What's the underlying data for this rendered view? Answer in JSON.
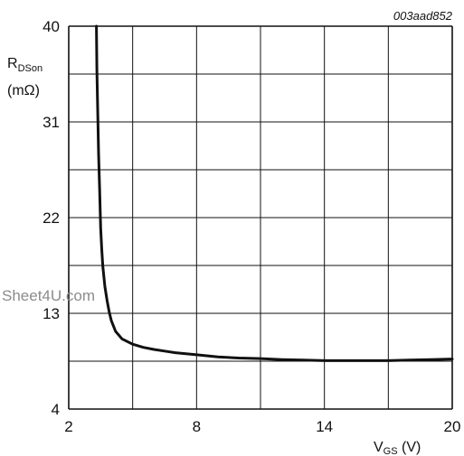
{
  "figure_id": "003aad852",
  "watermark": "Sheet4U.com",
  "chart_data": {
    "type": "line",
    "xlabel": {
      "main": "V",
      "sub": "GS",
      "unit": " (V)"
    },
    "ylabel": {
      "main": "R",
      "sub": "DSon",
      "unit": "(mΩ)"
    },
    "xlim": [
      2,
      20
    ],
    "ylim": [
      4,
      40
    ],
    "x_ticks": [
      2,
      8,
      14,
      20
    ],
    "y_ticks": [
      4,
      13,
      22,
      31,
      40
    ],
    "x_grid_step": 3,
    "y_grid_step": 4.5,
    "grid": true,
    "line_color": "#111111",
    "series": [
      {
        "x": [
          3.3,
          3.32,
          3.35,
          3.4,
          3.45,
          3.5,
          3.55,
          3.6,
          3.7,
          3.8,
          3.9,
          4.0,
          4.2,
          4.5,
          5.0,
          5.5,
          6.0,
          6.5,
          7.0,
          8.0,
          9.0,
          10.0,
          11.0,
          12.0,
          13.0,
          14.0,
          15.0,
          16.0,
          17.0,
          18.0,
          19.0,
          20.0
        ],
        "y": [
          40,
          36,
          33,
          28,
          24.5,
          21,
          19,
          17.4,
          15.5,
          14.2,
          13.1,
          12.3,
          11.3,
          10.6,
          10.1,
          9.8,
          9.6,
          9.45,
          9.3,
          9.1,
          8.9,
          8.8,
          8.75,
          8.65,
          8.6,
          8.55,
          8.55,
          8.55,
          8.55,
          8.6,
          8.65,
          8.7
        ]
      }
    ]
  }
}
